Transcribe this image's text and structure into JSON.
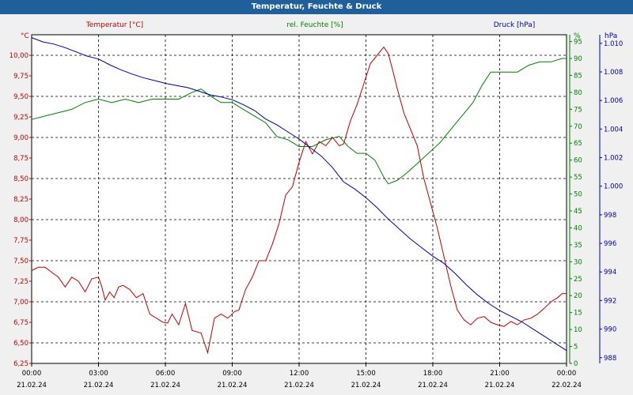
{
  "window": {
    "title": "Temperatur, Feuchte & Druck"
  },
  "colors": {
    "temperature": "#c00000",
    "humidity": "#008000",
    "pressure": "#0000a0",
    "titlebar": "#1f5f9a"
  },
  "chart_data": {
    "type": "line",
    "title": "Temperatur, Feuchte & Druck",
    "grid": true,
    "x_labels": [
      {
        "time": "00:00",
        "date": "21.02.24"
      },
      {
        "time": "03:00",
        "date": "21.02.24"
      },
      {
        "time": "06:00",
        "date": "21.02.24"
      },
      {
        "time": "09:00",
        "date": "21.02.24"
      },
      {
        "time": "12:00",
        "date": "21.02.24"
      },
      {
        "time": "15:00",
        "date": "21.02.24"
      },
      {
        "time": "18:00",
        "date": "21.02.24"
      },
      {
        "time": "21:00",
        "date": "21.02.24"
      },
      {
        "time": "00:00",
        "date": "22.02.24"
      }
    ],
    "x_range_hours": [
      0,
      24
    ],
    "axes": {
      "temperature": {
        "label": "Temperatur [°C]",
        "unit": "°C",
        "range": [
          6.25,
          10.25
        ],
        "ticks": [
          "6,25",
          "6,50",
          "6,75",
          "7,00",
          "7,25",
          "7,50",
          "7,75",
          "8,00",
          "8,25",
          "8,50",
          "8,75",
          "9,00",
          "9,25",
          "9,50",
          "9,75",
          "10,00"
        ]
      },
      "humidity": {
        "label": "rel. Feuchte [%]",
        "unit": "%",
        "range": [
          0,
          97
        ],
        "ticks": [
          "0",
          "5",
          "10",
          "15",
          "20",
          "25",
          "30",
          "35",
          "40",
          "45",
          "50",
          "55",
          "60",
          "65",
          "70",
          "75",
          "80",
          "85",
          "90",
          "95"
        ]
      },
      "pressure": {
        "label": "Druck [hPa]",
        "unit": "hPa",
        "range": [
          987.6,
          1010.6
        ],
        "ticks": [
          "988",
          "990",
          "992",
          "994",
          "996",
          "998",
          "1.000",
          "1.002",
          "1.004",
          "1.006",
          "1.008",
          "1.010"
        ]
      }
    },
    "series": [
      {
        "name": "Temperatur [°C]",
        "axis": "temperature",
        "x": [
          0,
          0.3,
          0.6,
          0.9,
          1.2,
          1.5,
          1.8,
          2.1,
          2.4,
          2.7,
          3.0,
          3.15,
          3.3,
          3.5,
          3.7,
          3.9,
          4.1,
          4.4,
          4.7,
          5.0,
          5.3,
          5.6,
          5.9,
          6.1,
          6.3,
          6.6,
          6.9,
          7.2,
          7.6,
          7.9,
          8.2,
          8.5,
          8.8,
          9.1,
          9.3,
          9.6,
          9.9,
          10.2,
          10.5,
          10.8,
          11.1,
          11.4,
          11.7,
          12.0,
          12.3,
          12.6,
          12.9,
          13.2,
          13.5,
          13.8,
          14.0,
          14.3,
          14.6,
          14.9,
          15.2,
          15.5,
          15.8,
          16.0,
          16.2,
          16.4,
          16.7,
          17.0,
          17.3,
          17.6,
          17.9,
          18.2,
          18.5,
          18.8,
          19.1,
          19.4,
          19.7,
          20.0,
          20.3,
          20.6,
          20.9,
          21.2,
          21.5,
          21.8,
          22.1,
          22.4,
          22.7,
          23.0,
          23.3,
          23.6,
          23.8,
          24.0
        ],
        "values": [
          7.38,
          7.42,
          7.42,
          7.36,
          7.3,
          7.18,
          7.3,
          7.25,
          7.12,
          7.28,
          7.3,
          7.18,
          7.02,
          7.12,
          7.05,
          7.18,
          7.2,
          7.15,
          7.05,
          7.1,
          6.85,
          6.8,
          6.75,
          6.74,
          6.85,
          6.72,
          6.98,
          6.65,
          6.62,
          6.38,
          6.8,
          6.85,
          6.8,
          6.88,
          6.9,
          7.15,
          7.3,
          7.5,
          7.5,
          7.7,
          7.95,
          8.3,
          8.4,
          8.7,
          8.95,
          8.8,
          8.95,
          8.9,
          9.0,
          8.9,
          8.92,
          9.2,
          9.4,
          9.65,
          9.9,
          10.0,
          10.1,
          10.02,
          9.82,
          9.6,
          9.3,
          9.1,
          8.9,
          8.5,
          8.2,
          7.9,
          7.55,
          7.2,
          6.9,
          6.78,
          6.72,
          6.8,
          6.82,
          6.75,
          6.72,
          6.7,
          6.76,
          6.72,
          6.78,
          6.8,
          6.85,
          6.92,
          7.0,
          7.05,
          7.1,
          7.1
        ]
      },
      {
        "name": "rel. Feuchte [%]",
        "axis": "humidity",
        "x": [
          0,
          0.6,
          1.2,
          1.8,
          2.4,
          3.0,
          3.6,
          4.2,
          4.8,
          5.4,
          6.0,
          6.6,
          7.2,
          7.6,
          8.0,
          8.5,
          9.0,
          9.5,
          10.0,
          10.5,
          11.0,
          11.5,
          12.0,
          12.6,
          13.2,
          13.8,
          14.2,
          14.6,
          15.0,
          15.4,
          15.8,
          16.0,
          16.4,
          16.8,
          17.3,
          17.8,
          18.3,
          18.8,
          19.3,
          19.8,
          20.2,
          20.6,
          21.0,
          21.4,
          21.8,
          22.3,
          22.8,
          23.3,
          23.8,
          24.0
        ],
        "values": [
          72,
          73,
          74,
          75,
          77,
          78,
          77,
          78,
          77,
          78,
          78,
          78,
          80,
          81,
          79,
          77,
          77,
          75,
          73,
          71,
          67,
          66,
          64,
          64,
          66,
          67,
          64,
          62,
          62,
          60,
          55,
          53,
          54,
          56,
          59,
          62,
          65,
          69,
          73,
          77,
          82,
          86,
          86,
          86,
          86,
          88,
          89,
          89,
          90,
          90
        ]
      },
      {
        "name": "Druck [hPa]",
        "axis": "pressure",
        "x": [
          0,
          0.5,
          1.0,
          1.5,
          2.0,
          2.5,
          3.0,
          3.5,
          4.0,
          4.5,
          5.0,
          5.5,
          6.0,
          6.5,
          7.0,
          7.5,
          8.0,
          8.5,
          9.0,
          9.5,
          10.0,
          10.5,
          11.0,
          11.5,
          12.0,
          12.5,
          13.0,
          13.5,
          14.0,
          14.5,
          15.0,
          15.5,
          16.0,
          16.5,
          17.0,
          17.5,
          18.0,
          18.5,
          19.0,
          19.5,
          20.0,
          20.5,
          21.0,
          21.5,
          22.0,
          22.5,
          23.0,
          23.5,
          24.0
        ],
        "values": [
          1010.4,
          1010.1,
          1009.95,
          1009.7,
          1009.4,
          1009.1,
          1008.9,
          1008.5,
          1008.15,
          1007.85,
          1007.6,
          1007.4,
          1007.2,
          1007.05,
          1006.9,
          1006.65,
          1006.4,
          1006.25,
          1006.05,
          1005.7,
          1005.3,
          1004.7,
          1004.3,
          1003.8,
          1003.3,
          1002.7,
          1002.1,
          1001.3,
          1000.3,
          999.8,
          999.2,
          998.5,
          997.7,
          997.0,
          996.3,
          995.7,
          995.1,
          994.6,
          993.9,
          993.1,
          992.4,
          991.8,
          991.3,
          990.9,
          990.5,
          990.0,
          989.5,
          989.0,
          988.5
        ]
      }
    ]
  }
}
